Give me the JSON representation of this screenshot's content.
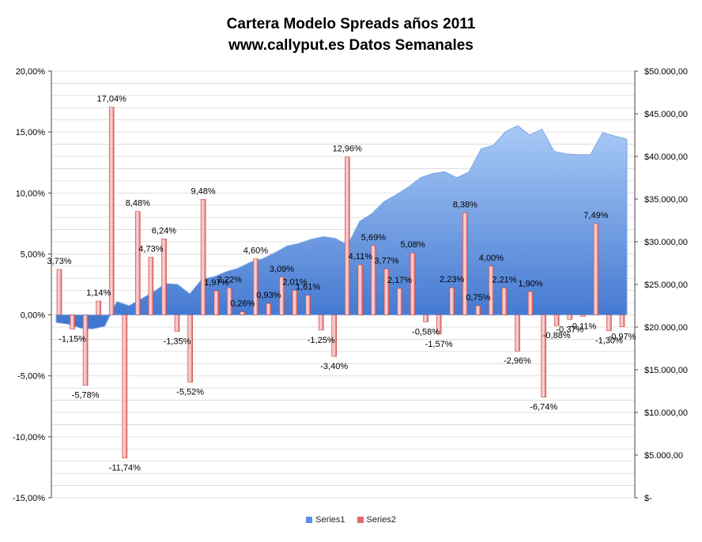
{
  "chart_data": {
    "type": "bar",
    "title": "Cartera Modelo Spreads años 2011",
    "subtitle": "www.callyput.es Datos Semanales",
    "y_left": {
      "range": [
        -15,
        20
      ],
      "ticks": [
        "20,00%",
        "15,00%",
        "10,00%",
        "5,00%",
        "0,00%",
        "-5,00%",
        "-10,00%",
        "-15,00%"
      ]
    },
    "y_right": {
      "range": [
        0,
        50000
      ],
      "ticks": [
        "$50.000,00",
        "$45.000,00",
        "$40.000,00",
        "$35.000,00",
        "$30.000,00",
        "$25.000,00",
        "$20.000,00",
        "$15.000,00",
        "$10.000,00",
        "$5.000,00",
        "$-"
      ]
    },
    "grid": true,
    "legend_position": "bottom",
    "series": [
      {
        "name": "Series1",
        "kind": "area",
        "axis": "right",
        "color": "#5B8FDB",
        "values": [
          20550,
          20350,
          19900,
          19800,
          20100,
          23000,
          22500,
          23300,
          24100,
          25100,
          25000,
          23900,
          25600,
          25900,
          26500,
          26900,
          27600,
          28000,
          28700,
          29500,
          29800,
          30300,
          30600,
          30400,
          29600,
          32400,
          33300,
          34700,
          35500,
          36400,
          37500,
          38000,
          38200,
          37500,
          38200,
          40900,
          41300,
          42900,
          43600,
          42500,
          43200,
          40600,
          40300,
          40200,
          40200,
          42800,
          42400,
          42000
        ]
      },
      {
        "name": "Series2",
        "kind": "bar",
        "axis": "left",
        "color": "#E46A6A",
        "values": [
          3.73,
          -1.15,
          -5.78,
          1.14,
          17.04,
          -11.74,
          8.48,
          4.73,
          6.24,
          -1.35,
          -5.52,
          9.48,
          1.97,
          2.22,
          0.26,
          4.6,
          0.93,
          3.09,
          2.01,
          1.61,
          -1.25,
          -3.4,
          12.96,
          4.11,
          5.69,
          3.77,
          2.17,
          5.08,
          -0.58,
          -1.57,
          2.23,
          8.38,
          0.75,
          4.0,
          2.21,
          -2.96,
          1.9,
          -6.74,
          -0.88,
          -0.37,
          -0.11,
          7.49,
          -1.3,
          -0.97
        ],
        "labels": [
          "3,73%",
          "-1,15%",
          "-5,78%",
          "1,14%",
          "17,04%",
          "-11,74%",
          "8,48%",
          "4,73%",
          "6,24%",
          "-1,35%",
          "-5,52%",
          "9,48%",
          "1,97%",
          "2,22%",
          "0,26%",
          "4,60%",
          "0,93%",
          "3,09%",
          "2,01%",
          "1,61%",
          "-1,25%",
          "-3,40%",
          "12,96%",
          "4,11%",
          "5,69%",
          "3,77%",
          "2,17%",
          "5,08%",
          "-0,58%",
          "-1,57%",
          "2,23%",
          "8,38%",
          "0,75%",
          "4,00%",
          "2,21%",
          "-2,96%",
          "1,90%",
          "-6,74%",
          "-0,88%",
          "-0,37%",
          "-0,11%",
          "7,49%",
          "-1,30%",
          "-0,97%"
        ]
      }
    ]
  }
}
